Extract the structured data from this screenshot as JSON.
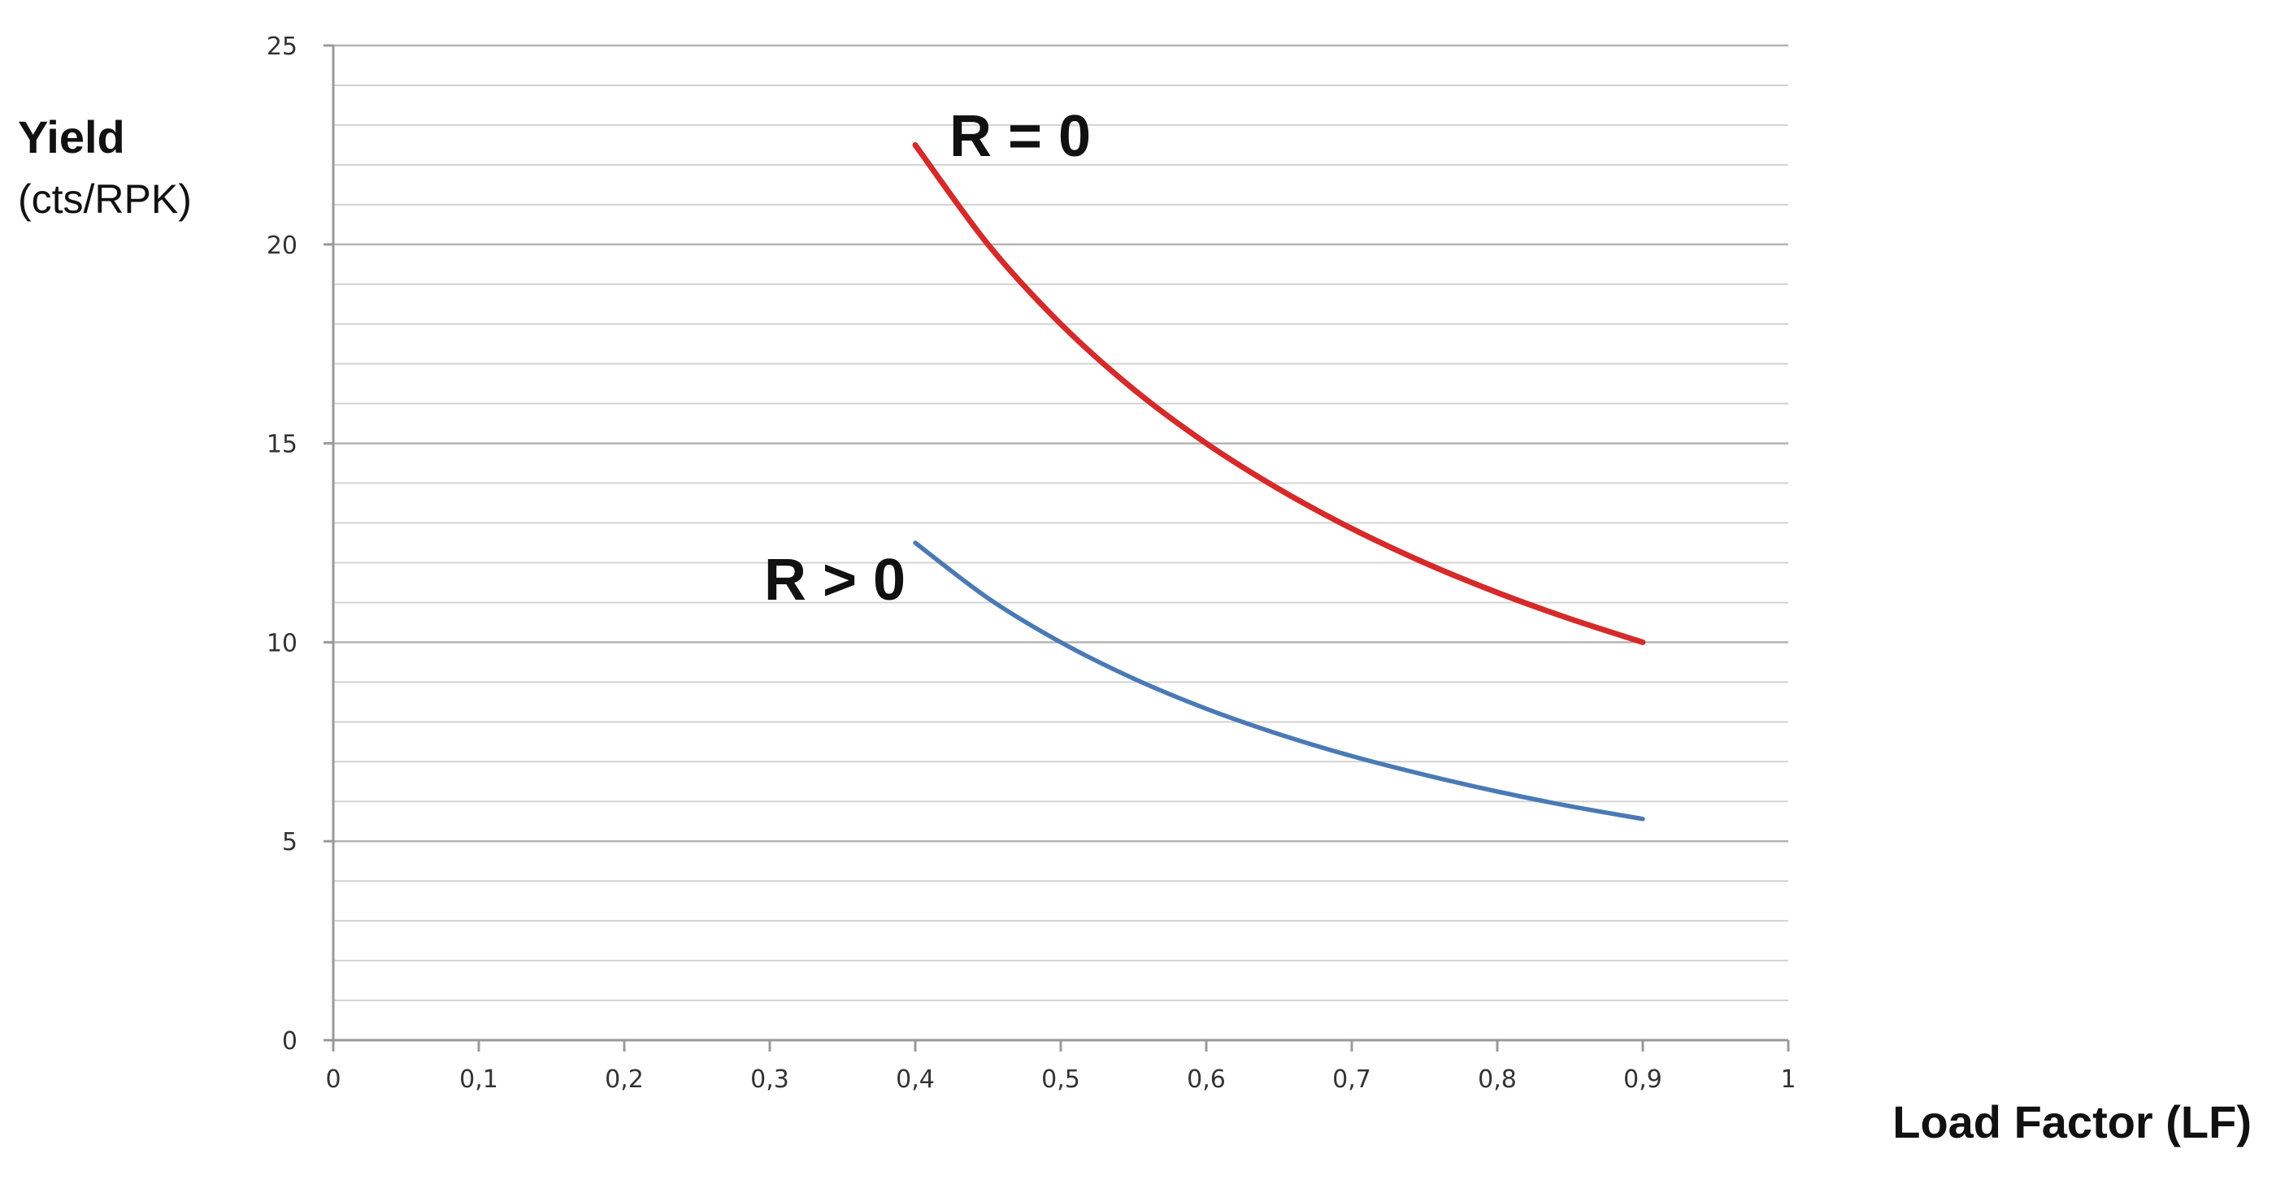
{
  "chart_data": {
    "type": "line",
    "title": "",
    "ylabel": "Yield",
    "ylabel_unit": "(cts/RPK)",
    "xlabel": "Load Factor (LF)",
    "xlim": [
      0,
      1
    ],
    "ylim": [
      0,
      25
    ],
    "x_ticks": [
      "0",
      "0,1",
      "0,2",
      "0,3",
      "0,4",
      "0,5",
      "0,6",
      "0,7",
      "0,8",
      "0,9",
      "1"
    ],
    "y_ticks": [
      "0",
      "5",
      "10",
      "15",
      "20",
      "25"
    ],
    "grid": true,
    "legend": "none",
    "series": [
      {
        "name": "R = 0",
        "color": "#d62a2a",
        "x": [
          0.4,
          0.45,
          0.5,
          0.55,
          0.6,
          0.65,
          0.7,
          0.75,
          0.8,
          0.85,
          0.9
        ],
        "y": [
          22.5,
          20.0,
          18.0,
          16.36,
          15.0,
          13.85,
          12.86,
          12.0,
          11.25,
          10.59,
          10.0
        ]
      },
      {
        "name": "R > 0",
        "color": "#4a7ab5",
        "x": [
          0.4,
          0.45,
          0.5,
          0.55,
          0.6,
          0.65,
          0.7,
          0.75,
          0.8,
          0.85,
          0.9
        ],
        "y": [
          12.5,
          11.11,
          10.0,
          9.09,
          8.33,
          7.69,
          7.14,
          6.67,
          6.25,
          5.88,
          5.56
        ]
      }
    ]
  }
}
